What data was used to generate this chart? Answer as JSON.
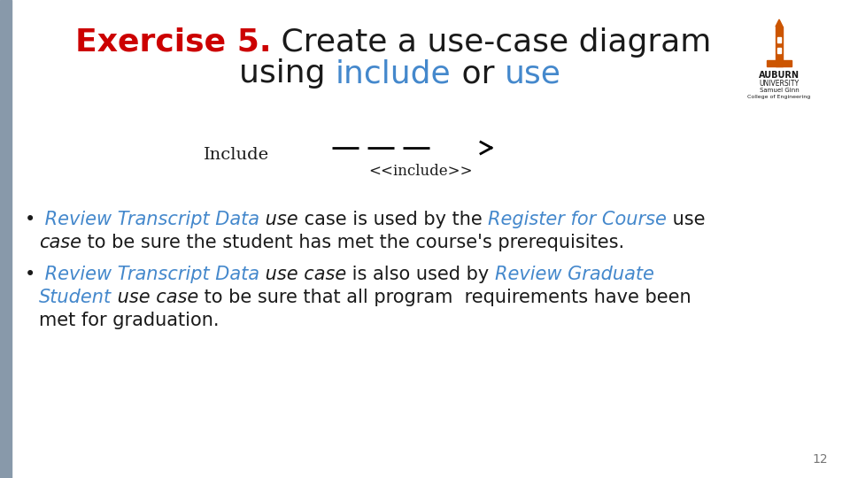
{
  "bg_color": "#ffffff",
  "title_color_red": "#cc0000",
  "title_color_dark": "#1a1a1a",
  "title_color_blue": "#4488cc",
  "body_color_dark": "#1a1a1a",
  "body_color_blue": "#4488cc",
  "left_bar_color": "#8899aa",
  "page_number": "12",
  "include_label": "Include",
  "include_arrow_label": "<<include>>"
}
